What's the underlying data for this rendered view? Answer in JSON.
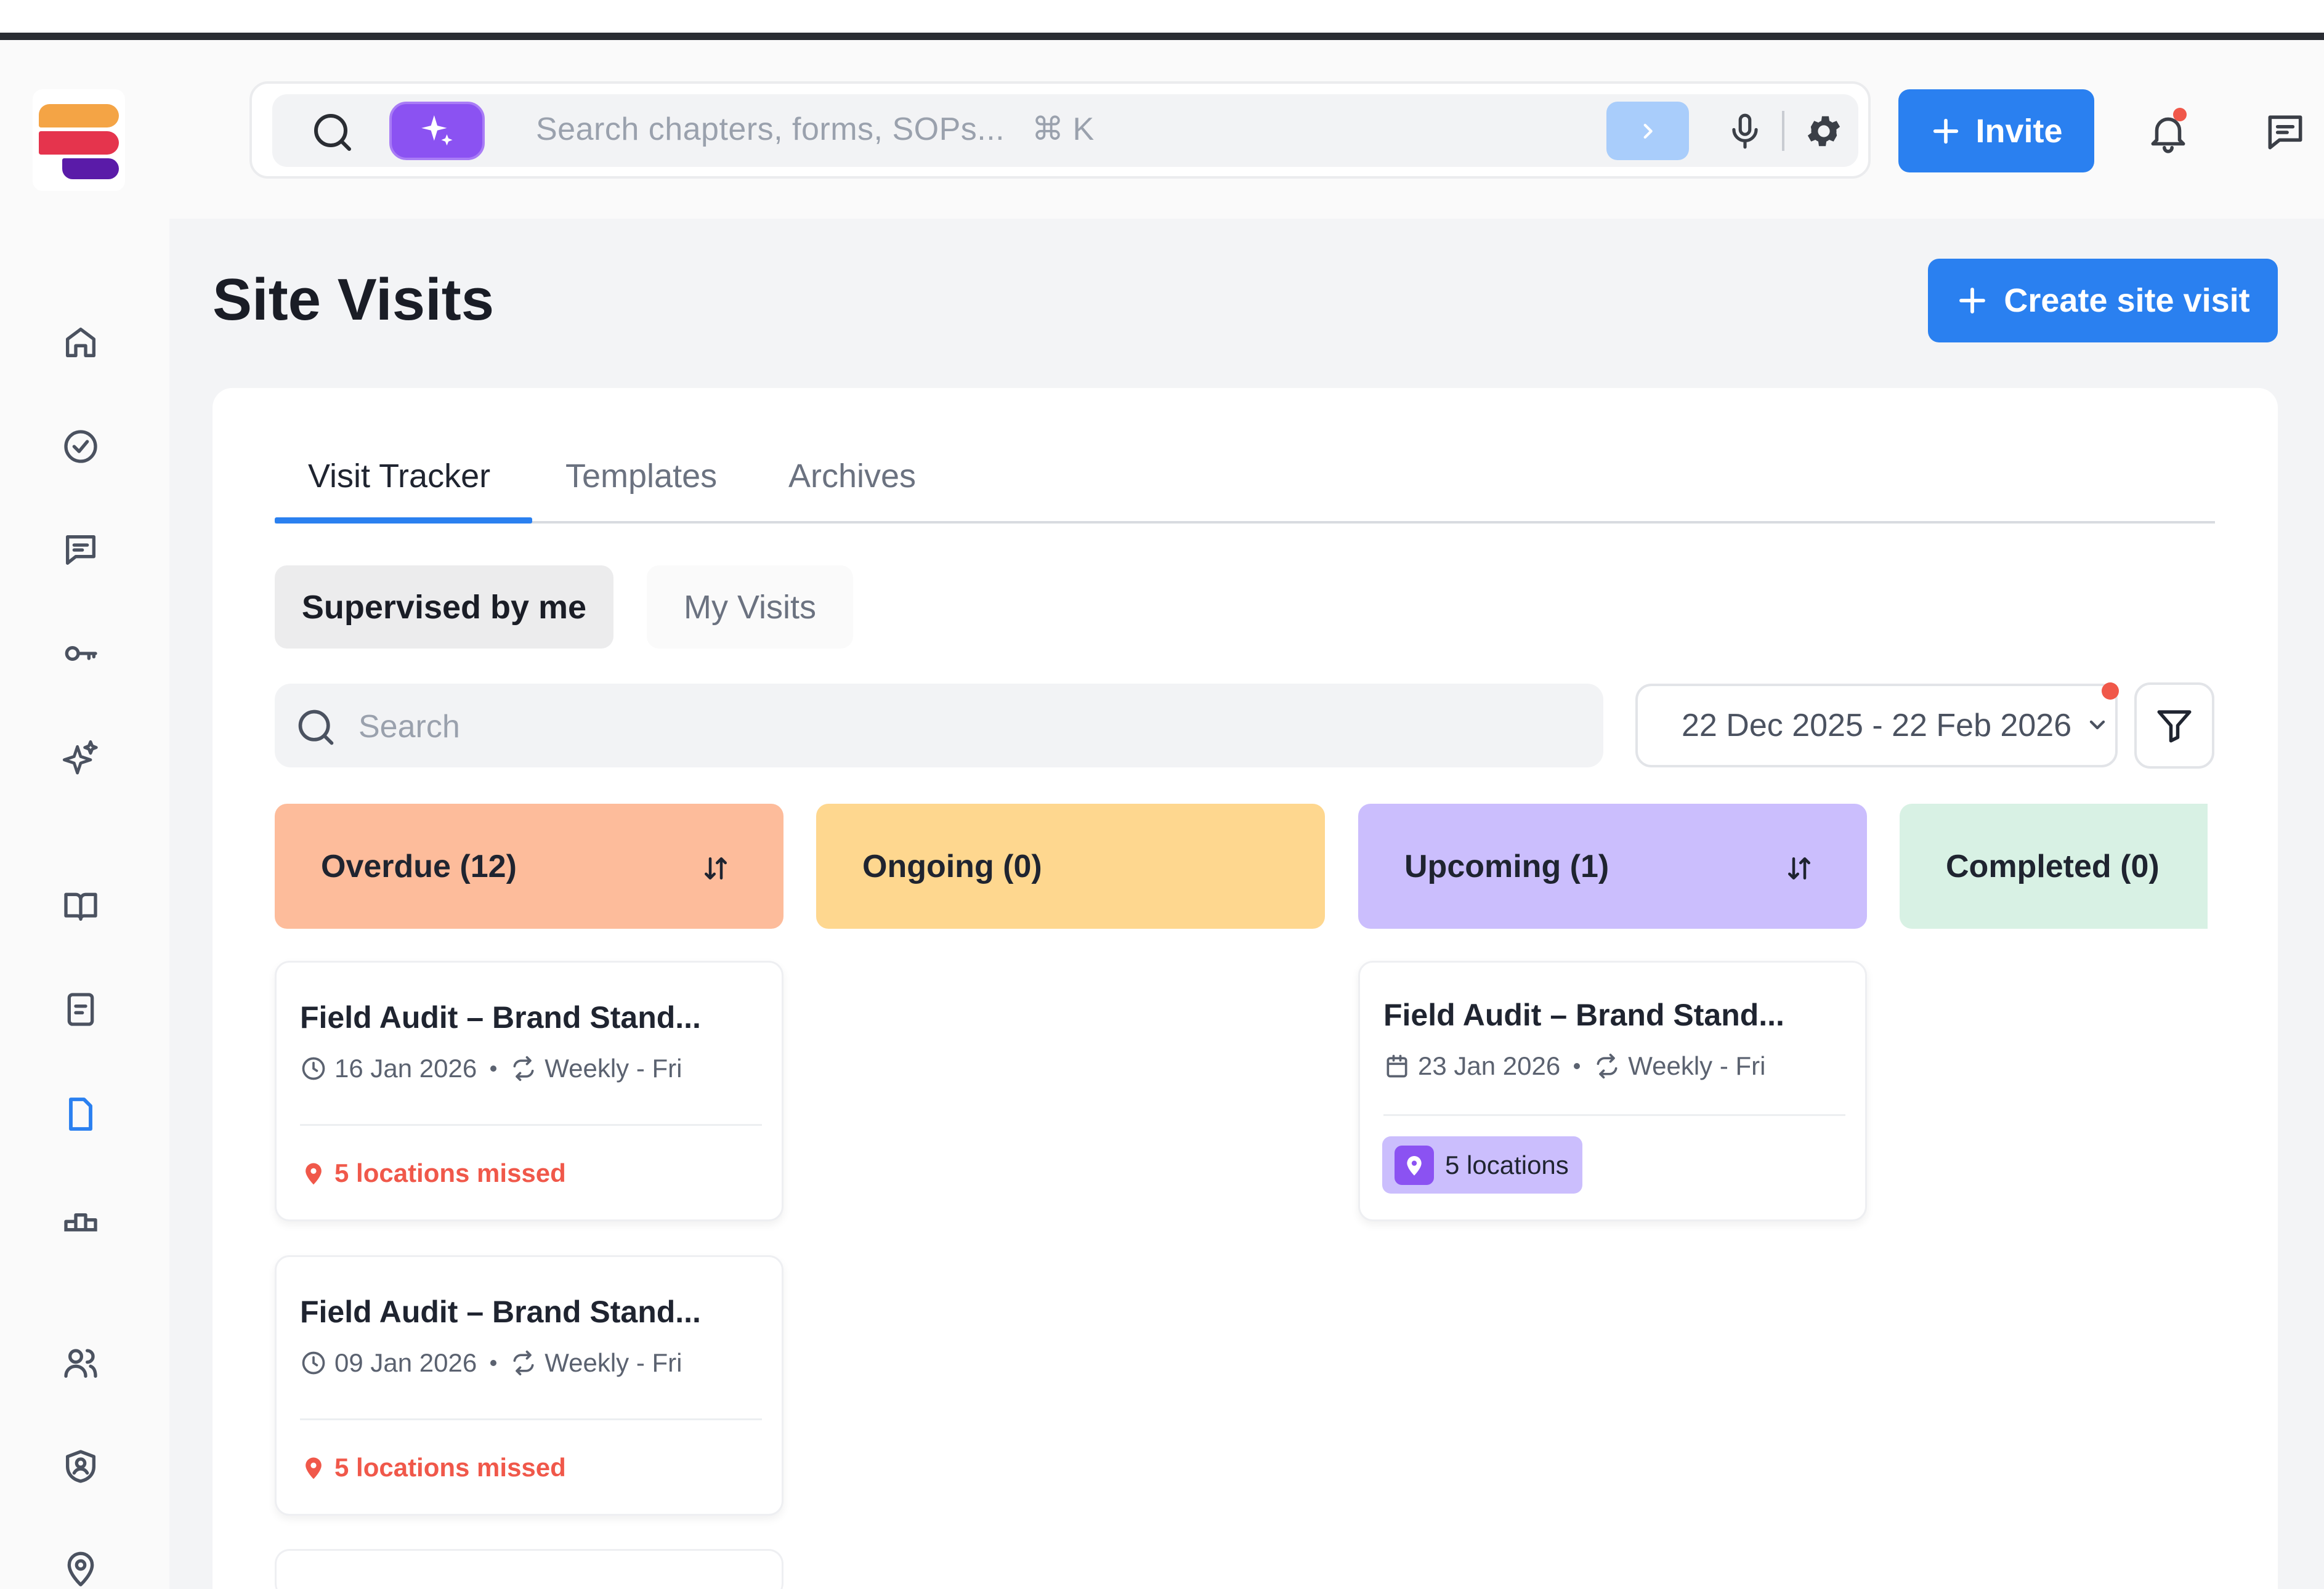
{
  "header": {
    "search_placeholder": "Search chapters, forms, SOPs...",
    "search_shortcut": "⌘ K",
    "invite_label": "Invite"
  },
  "page": {
    "title": "Site Visits",
    "create_label": "Create site visit"
  },
  "tabs": [
    {
      "label": "Visit Tracker",
      "active": true
    },
    {
      "label": "Templates",
      "active": false
    },
    {
      "label": "Archives",
      "active": false
    }
  ],
  "segments": [
    {
      "label": "Supervised by me",
      "active": true
    },
    {
      "label": "My Visits",
      "active": false
    }
  ],
  "filters": {
    "search_placeholder": "Search",
    "date_range": "22 Dec 2025 - 22 Feb 2026"
  },
  "columns": [
    {
      "label": "Overdue (12)",
      "color": "#fdbc9b"
    },
    {
      "label": "Ongoing (0)",
      "color": "#fed78f"
    },
    {
      "label": "Upcoming (1)",
      "color": "#cbbefd"
    },
    {
      "label": "Completed (0)",
      "color": "#d8f1e4"
    }
  ],
  "cards": {
    "overdue": [
      {
        "title": "Field Audit – Brand Stand...",
        "date": "16 Jan 2026",
        "recurrence": "Weekly - Fri",
        "status": "5 locations missed"
      },
      {
        "title": "Field Audit – Brand Stand...",
        "date": "09 Jan 2026",
        "recurrence": "Weekly - Fri",
        "status": "5 locations missed"
      }
    ],
    "upcoming": [
      {
        "title": "Field Audit – Brand Stand...",
        "date": "23 Jan 2026",
        "recurrence": "Weekly - Fri",
        "locations": "5 locations"
      }
    ]
  },
  "colors": {
    "accent": "#2a80f0",
    "ai_purple": "#8b52f2",
    "alert_red": "#f0584a"
  },
  "sidebar_icons": [
    "home-icon",
    "check-circle-icon",
    "message-icon",
    "key-icon",
    "sparkles-icon",
    "book-icon",
    "document-icon",
    "file-icon",
    "podium-icon",
    "users-icon",
    "shield-user-icon",
    "location-pin-icon"
  ]
}
